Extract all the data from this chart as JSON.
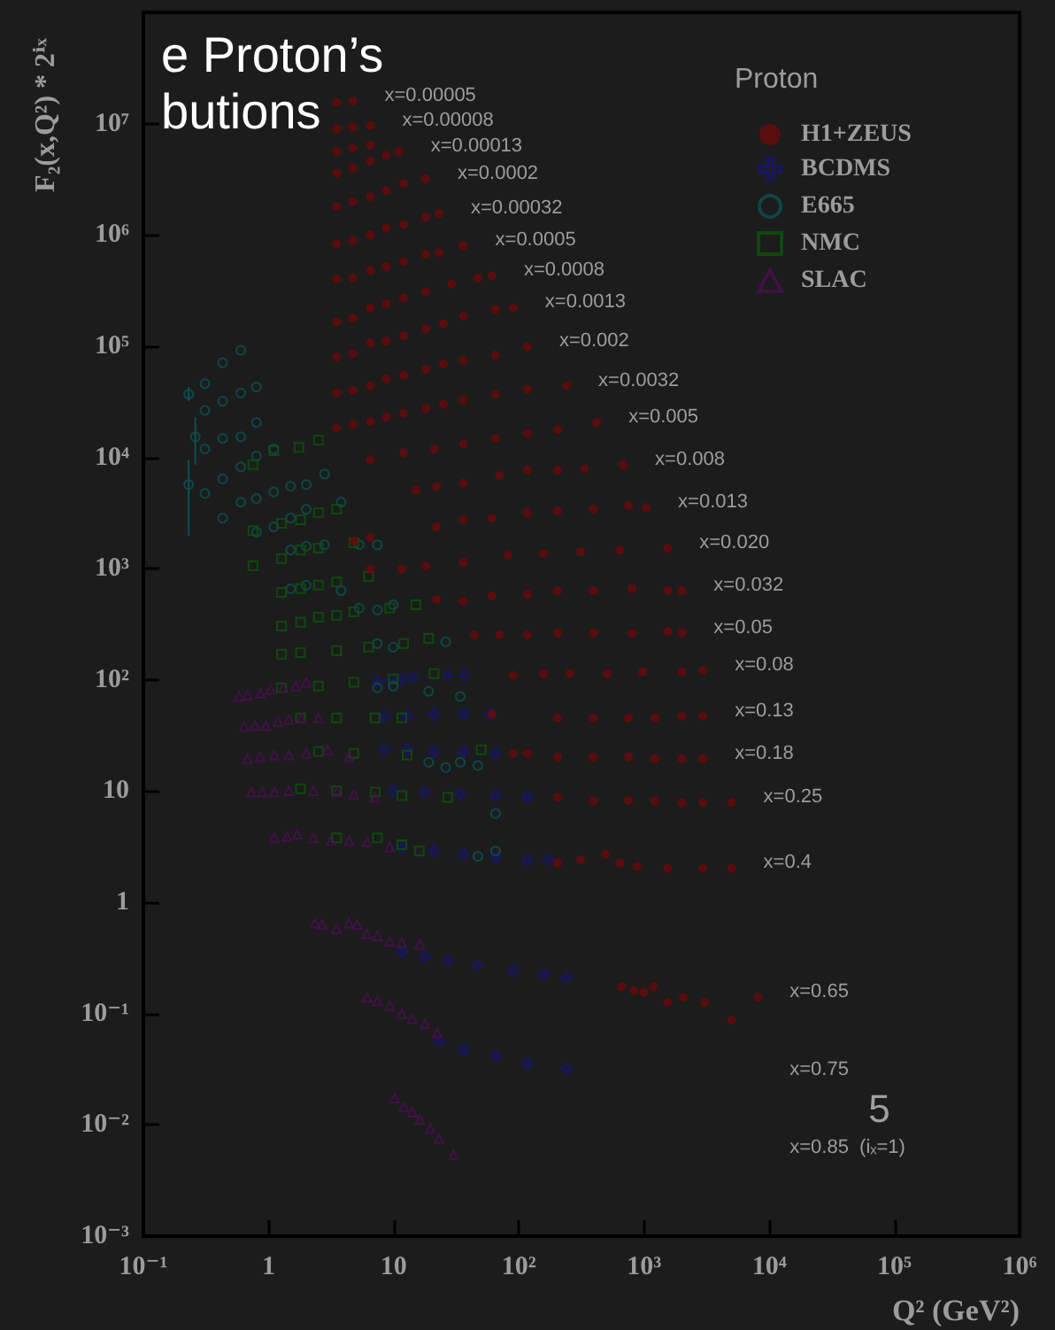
{
  "chart_data": {
    "type": "scatter",
    "title": "e Proton’s\nbutions",
    "xlabel": "Q² (GeV²)",
    "ylabel": "F₂(x,Q²) * 2ⁱˣ",
    "legend_title": "Proton",
    "legend": "top right",
    "log": "xy",
    "xlim": [
      0.1,
      1000000
    ],
    "ylim": [
      0.001,
      100000000
    ],
    "xticks": [
      {
        "value": 0.1,
        "label": "10⁻¹"
      },
      1,
      10,
      {
        "value": 100,
        "label": "10²"
      },
      {
        "value": 1000,
        "label": "10³"
      },
      {
        "value": 10000,
        "label": "10⁴"
      },
      {
        "value": 100000,
        "label": "10⁵"
      },
      {
        "value": 1000000,
        "label": "10⁶"
      }
    ],
    "yticks": [
      {
        "value": 0.001,
        "label": "10⁻³"
      },
      {
        "value": 0.01,
        "label": "10⁻²"
      },
      {
        "value": 0.1,
        "label": "10⁻¹"
      },
      1,
      10,
      {
        "value": 100,
        "label": "10²"
      },
      {
        "value": 1000,
        "label": "10³"
      },
      {
        "value": 10000,
        "label": "10⁴"
      },
      {
        "value": 100000,
        "label": "10⁵"
      },
      {
        "value": 1000000,
        "label": "10⁶"
      },
      {
        "value": 10000000,
        "label": "10⁷"
      }
    ],
    "series": [
      {
        "name": "H1+ZEUS",
        "color": "#6a0a0a",
        "marker": "circle",
        "x": [
          3.5,
          4.7,
          3.5,
          4.7,
          6.5,
          3.5,
          4.7,
          6.5,
          3.5,
          4.7,
          6.5,
          8.7,
          11,
          3.5,
          4.7,
          6.5,
          8.7,
          12,
          18,
          3.5,
          4.7,
          6.5,
          8.7,
          12,
          18,
          23,
          3.5,
          4.7,
          6.5,
          8.7,
          12,
          18,
          23,
          36,
          3.5,
          4.7,
          6.5,
          8.7,
          12,
          18,
          29,
          47,
          61,
          3.5,
          4.7,
          6.5,
          8.7,
          12,
          18,
          25,
          36,
          65,
          90,
          3.5,
          4.7,
          6.5,
          8.7,
          12,
          18,
          25,
          36,
          65,
          117,
          3.5,
          4.7,
          6.5,
          8.7,
          12,
          18,
          25,
          36,
          65,
          117,
          240,
          6.5,
          12,
          21,
          36,
          65,
          117,
          204,
          418,
          15,
          22,
          36,
          70,
          117,
          204,
          333,
          681,
          4.8,
          6.5,
          22,
          36,
          61,
          117,
          204,
          392,
          751,
          1040,
          6.5,
          11.6,
          18,
          36,
          82,
          157,
          312,
          640,
          1540,
          22,
          36,
          61,
          117,
          204,
          392,
          802,
          1540,
          2000,
          44,
          70,
          117,
          204,
          392,
          802,
          1540,
          2000,
          90,
          157,
          256,
          508,
          975,
          2000,
          2950,
          61,
          204,
          392,
          751,
          1220,
          2000,
          2950,
          90,
          117,
          204,
          392,
          751,
          1220,
          2000,
          2950,
          204,
          392,
          751,
          1220,
          2000,
          2950,
          5000,
          204,
          312,
          492,
          640,
          880,
          1540,
          2950,
          5000,
          660,
          830,
          1000,
          1190,
          1540,
          2060,
          3050,
          5000,
          8100
        ],
        "values": [
          15500000.0,
          16000000.0,
          9000000.0,
          9300000.0,
          9600000.0,
          5600000.0,
          6000000.0,
          6400000.0,
          3600000.0,
          4000000.0,
          4600000.0,
          5200000.0,
          5600000.0,
          1800000.0,
          2000000.0,
          2200000.0,
          2500000.0,
          2900000.0,
          3200000.0,
          830000.0,
          890000.0,
          1000000.0,
          1150000.0,
          1240000.0,
          1440000.0,
          1550000.0,
          400000.0,
          410000.0,
          480000.0,
          520000.0,
          580000.0,
          670000.0,
          690000.0,
          800000.0,
          166000.0,
          178000.0,
          220000.0,
          240000.0,
          270000.0,
          310000.0,
          360000.0,
          410000.0,
          430000.0,
          80000.0,
          86000.0,
          107000.0,
          111000.0,
          124000.0,
          143000.0,
          160000.0,
          185000.0,
          214000.0,
          222000.0,
          38000.0,
          40000.0,
          44000.0,
          51000.0,
          55000.0,
          62000.0,
          69000.0,
          74000.0,
          83000.0,
          99000.0,
          18400.0,
          19800.0,
          21000.0,
          23000.0,
          25000.0,
          27500.0,
          30000.0,
          33000.0,
          37000.0,
          41000.0,
          44000.0,
          9500,
          11000.0,
          11900.0,
          13200.0,
          14800.0,
          16500.0,
          17800.0,
          20600.0,
          5100,
          5500,
          5900,
          6900,
          7700,
          7700,
          7900,
          8600,
          1770,
          1900,
          2370,
          2750,
          2850,
          3180,
          3300,
          3420,
          3680,
          3550,
          990,
          990,
          1060,
          1140,
          1320,
          1370,
          1420,
          1470,
          1530,
          530,
          510,
          570,
          590,
          635,
          635,
          660,
          635,
          635,
          254,
          254,
          254,
          264,
          264,
          264,
          274,
          264,
          110,
          114,
          114,
          114,
          118,
          118,
          122,
          49,
          45.5,
          45.5,
          45.5,
          45.5,
          47,
          47,
          21.9,
          21.9,
          20.3,
          20.3,
          20.3,
          19.6,
          19.6,
          19.6,
          8.8,
          8.2,
          8.2,
          8.2,
          7.9,
          7.9,
          7.9,
          2.26,
          2.43,
          2.72,
          2.26,
          2.1,
          2.03,
          2.03,
          2.03,
          0.175,
          0.162,
          0.156,
          0.175,
          0.126,
          0.14,
          0.126,
          0.087,
          0.14
        ]
      },
      {
        "name": "BCDMS",
        "color": "#16166e",
        "marker": "cross",
        "x": [
          7.4,
          9.3,
          11.6,
          14.1,
          27,
          37,
          8.4,
          12.8,
          21,
          36,
          59,
          8.4,
          12.8,
          21,
          36,
          65,
          9.9,
          17.7,
          34,
          65,
          117,
          11.6,
          21,
          36,
          65,
          117,
          173,
          11.6,
          17.7,
          27,
          47,
          90,
          157,
          240,
          23,
          36,
          65,
          117,
          240
        ],
        "values": [
          98,
          98,
          102,
          106,
          110,
          110,
          47,
          47,
          49,
          49,
          49,
          23.5,
          23.5,
          22.7,
          22.7,
          21.9,
          10.1,
          9.8,
          9.4,
          9.1,
          8.8,
          3.15,
          2.9,
          2.72,
          2.52,
          2.43,
          2.43,
          0.36,
          0.325,
          0.3,
          0.27,
          0.243,
          0.225,
          0.21,
          0.056,
          0.047,
          0.042,
          0.036,
          0.032
        ]
      },
      {
        "name": "E665",
        "color": "#0c5050",
        "marker": "circle",
        "x": [
          0.23,
          0.31,
          0.43,
          0.6,
          0.31,
          0.43,
          0.6,
          0.8,
          0.26,
          0.31,
          0.43,
          0.6,
          0.8,
          0.23,
          0.31,
          0.43,
          0.6,
          0.8,
          1.1,
          0.43,
          0.6,
          0.8,
          1.1,
          1.5,
          2,
          2.8,
          0.8,
          1.1,
          1.5,
          2,
          3.8,
          1.5,
          2,
          2.8,
          5.3,
          7.4,
          1.5,
          2,
          3.8,
          5.3,
          7.4,
          9.9,
          7.4,
          9.9,
          26,
          7.4,
          9.9,
          19,
          34,
          19,
          26,
          34,
          47,
          65,
          47,
          65
        ],
        "values": [
          37000.0,
          46000.0,
          71000.0,
          92000.0,
          26500.0,
          32000.0,
          38000.0,
          43000.0,
          15300.0,
          11900.0,
          14800.0,
          15300.0,
          20600.0,
          5700,
          4750,
          6400,
          8200,
          10300.0,
          11900.0,
          2850,
          3960,
          4260,
          4900,
          5500,
          5700,
          7100,
          2130,
          2370,
          2850,
          3420,
          3960,
          1470,
          1590,
          1640,
          1640,
          1640,
          660,
          710,
          635,
          441,
          425,
          474,
          212,
          197,
          220,
          85,
          88,
          79,
          71,
          18.2,
          16.3,
          18.2,
          17,
          6.3,
          2.6,
          2.9
        ],
        "errors": [
          [
            32000,
            43000
          ],
          null,
          null,
          null,
          null,
          null,
          null,
          null,
          [
            8550,
            23000
          ],
          null,
          null,
          null,
          null,
          [
            1980,
            9500
          ],
          null,
          null,
          null,
          null,
          null,
          null,
          null,
          null,
          null,
          null,
          null,
          null,
          null,
          null,
          null,
          null,
          null,
          null,
          null,
          null,
          null,
          null,
          null,
          null,
          null,
          null,
          null,
          null,
          null,
          null,
          null,
          null,
          null,
          null,
          null,
          null,
          null,
          null,
          null,
          null,
          null,
          null
        ]
      },
      {
        "name": "NMC",
        "color": "#0c540c",
        "marker": "square",
        "x": [
          0.75,
          1.1,
          1.75,
          2.5,
          0.75,
          1.27,
          1.8,
          2.5,
          3.5,
          0.75,
          1.27,
          1.8,
          2.5,
          4.8,
          1.27,
          1.8,
          2.5,
          3.5,
          6.3,
          1.27,
          1.8,
          2.5,
          3.5,
          4.8,
          9.3,
          15,
          1.27,
          1.8,
          3.5,
          6.3,
          12,
          19,
          1.27,
          2.5,
          4.8,
          9.9,
          21,
          1.8,
          3.5,
          7.1,
          11.6,
          2.5,
          4.8,
          12.8,
          50,
          1.8,
          3.5,
          7.1,
          11.6,
          27,
          3.5,
          7.4,
          11.6,
          16
        ],
        "values": [
          8600,
          11500.0,
          12300.0,
          14300.0,
          2200,
          2550,
          2750,
          3180,
          3420,
          1060,
          1230,
          1470,
          1530,
          1710,
          612,
          660,
          710,
          760,
          850,
          305,
          329,
          367,
          380,
          409,
          441,
          474,
          170,
          176,
          183,
          197,
          212,
          236,
          85,
          88,
          95,
          102,
          114,
          45.5,
          45.5,
          45.5,
          45.5,
          22.7,
          21.9,
          21.1,
          23.5,
          10.5,
          10.1,
          9.8,
          9.1,
          8.8,
          3.8,
          3.8,
          3.3,
          2.9
        ]
      },
      {
        "name": "SLAC",
        "color": "#4a1050",
        "marker": "triangle",
        "x": [
          0.58,
          0.68,
          0.86,
          1.04,
          1.31,
          1.65,
          2,
          0.64,
          0.78,
          0.95,
          1.19,
          1.45,
          1.82,
          2.5,
          0.68,
          0.86,
          1.11,
          1.45,
          2,
          2.96,
          4.4,
          0.73,
          0.89,
          1.11,
          1.45,
          2.28,
          3.5,
          4.8,
          7.1,
          1.11,
          1.4,
          1.7,
          2.28,
          3.16,
          4.4,
          6.1,
          9.3,
          2.35,
          2.68,
          3.5,
          4.4,
          5.1,
          6.1,
          7.4,
          9.3,
          11.6,
          16.1,
          6.1,
          7.4,
          9.3,
          11.6,
          14.1,
          17.7,
          22.3,
          10.2,
          12,
          14.1,
          16.1,
          19.6,
          23,
          30
        ],
        "values": [
          71,
          73,
          76,
          82,
          85,
          88,
          95,
          38,
          39,
          39,
          42,
          44,
          45.5,
          45.5,
          19.6,
          20.3,
          21.1,
          21.1,
          21.9,
          23.5,
          20.3,
          9.8,
          9.8,
          9.8,
          10.1,
          10.1,
          9.8,
          9.4,
          8.8,
          3.8,
          3.9,
          4.1,
          3.8,
          3.6,
          3.6,
          3.5,
          3.15,
          0.65,
          0.63,
          0.58,
          0.65,
          0.63,
          0.52,
          0.5,
          0.45,
          0.435,
          0.42,
          0.14,
          0.13,
          0.117,
          0.1,
          0.09,
          0.081,
          0.067,
          0.0174,
          0.0145,
          0.013,
          0.0112,
          0.0093,
          0.0075,
          0.0054
        ]
      }
    ],
    "annotations": [
      {
        "text": "x=0.00005",
        "x": 4.7,
        "y": 16000000.0
      },
      {
        "text": "x=0.00008",
        "x": 6.5,
        "y": 9600000.0
      },
      {
        "text": "x=0.00013",
        "x": 11,
        "y": 5600000.0
      },
      {
        "text": "x=0.0002",
        "x": 18,
        "y": 3200000.0
      },
      {
        "text": "x=0.00032",
        "x": 23,
        "y": 1550000.0
      },
      {
        "text": "x=0.0005",
        "x": 36,
        "y": 800000.0
      },
      {
        "text": "x=0.0008",
        "x": 61,
        "y": 430000.0
      },
      {
        "text": "x=0.0013",
        "x": 90,
        "y": 222000.0
      },
      {
        "text": "x=0.002",
        "x": 117,
        "y": 99000.0
      },
      {
        "text": "x=0.0032",
        "x": 240,
        "y": 44000.0
      },
      {
        "text": "x=0.005",
        "x": 418,
        "y": 20600.0
      },
      {
        "text": "x=0.008",
        "x": 681,
        "y": 8600
      },
      {
        "text": "x=0.013",
        "x": 1040,
        "y": 3550
      },
      {
        "text": "x=0.020",
        "x": 1540,
        "y": 1530
      },
      {
        "text": "x=0.032",
        "x": 2000,
        "y": 635
      },
      {
        "text": "x=0.05",
        "x": 2000,
        "y": 264
      },
      {
        "text": "x=0.08",
        "x": 2950,
        "y": 122
      },
      {
        "text": "x=0.13",
        "x": 2950,
        "y": 47
      },
      {
        "text": "x=0.18",
        "x": 2950,
        "y": 19.6
      },
      {
        "text": "x=0.25",
        "x": 5000,
        "y": 7.9
      },
      {
        "text": "x=0.4",
        "x": 5000,
        "y": 2.03
      },
      {
        "text": "x=0.65",
        "x": 8100,
        "y": 0.14
      },
      "x=0.75",
      "x=0.85  (iₓ=1)",
      "5"
    ]
  }
}
